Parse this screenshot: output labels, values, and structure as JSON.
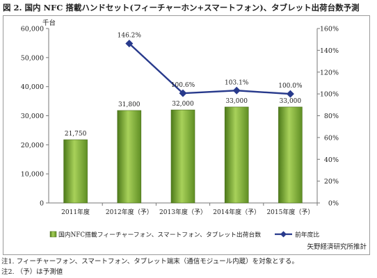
{
  "header": {
    "title": "図 2.  国内 NFC 搭載ハンドセット(フィーチャーホン+スマートフォン)、タブレット出荷台数予測"
  },
  "chart_data": {
    "type": "bar",
    "categories": [
      "2011年度",
      "2012年度（予）",
      "2013年度（予）",
      "2014年度（予）",
      "2015年度（予）"
    ],
    "series": [
      {
        "name": "国内NFC搭載フィーチャーフォン、スマートフォン、タブレット出荷台数",
        "type": "bar",
        "axis": "left",
        "values": [
          21750,
          31800,
          32000,
          33000,
          33000
        ],
        "labels": [
          "21,750",
          "31,800",
          "32,000",
          "33,000",
          "33,000"
        ],
        "color": "#7aa637"
      },
      {
        "name": "前年度比",
        "type": "line",
        "axis": "right",
        "values": [
          null,
          146.2,
          100.6,
          103.1,
          100.0
        ],
        "labels": [
          "",
          "146.2%",
          "100.6%",
          "103.1%",
          "100.0%"
        ],
        "color": "#283a8c"
      }
    ],
    "y_left": {
      "unit": "千台",
      "ylim": [
        0,
        60000
      ],
      "ticks": [
        "0",
        "10,000",
        "20,000",
        "30,000",
        "40,000",
        "50,000",
        "60,000"
      ]
    },
    "y_right": {
      "ylim": [
        0,
        160
      ],
      "ticks": [
        "0%",
        "20%",
        "40%",
        "60%",
        "80%",
        "100%",
        "120%",
        "140%",
        "160%"
      ]
    },
    "grid": false,
    "legend": "bottom",
    "source": "矢野経済研究所推計"
  },
  "notes": [
    "注1.  フィーチャーフォン、スマートフォン、タブレット端末（通信モジュール内蔵）を対象とする。",
    "注2.  （予）は予測値"
  ]
}
